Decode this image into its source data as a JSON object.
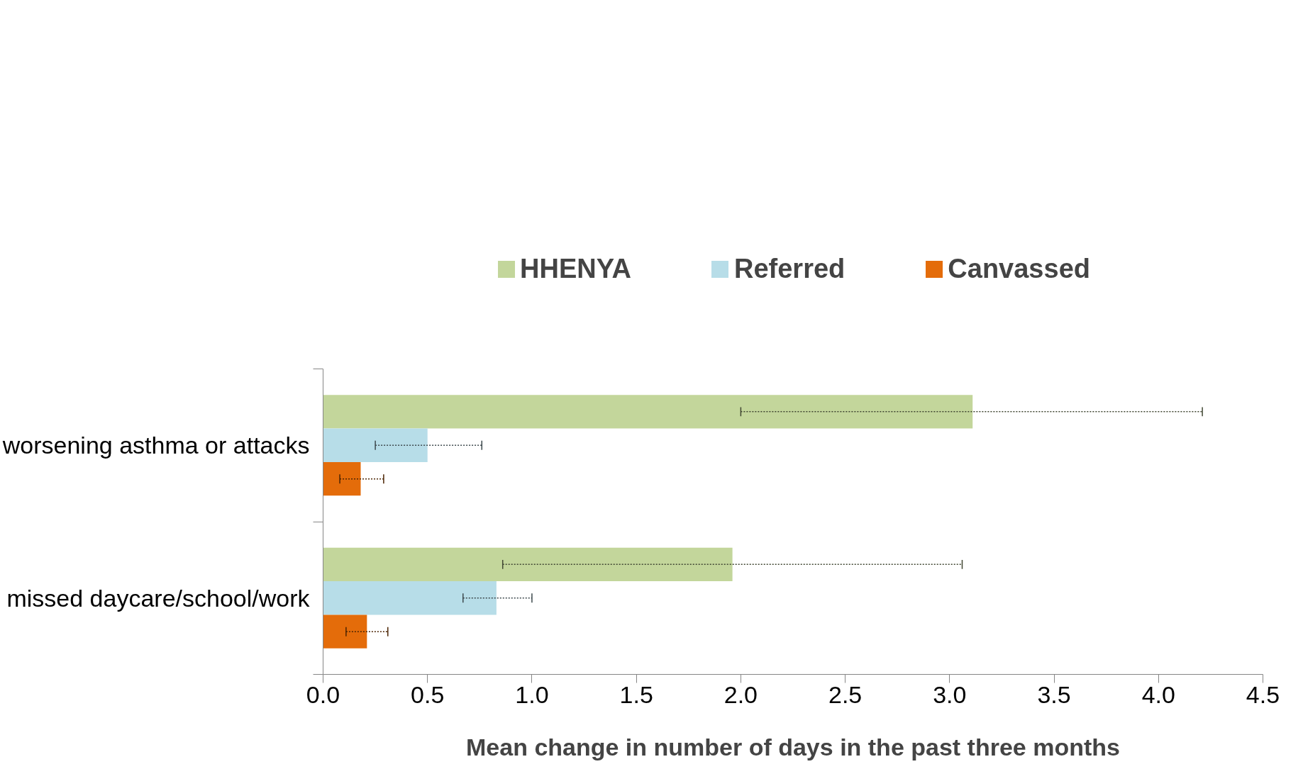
{
  "chart_data": {
    "type": "bar",
    "orientation": "horizontal",
    "categories": [
      "worsening asthma or attacks",
      "missed daycare/school/work"
    ],
    "series": [
      {
        "name": "HHENYA",
        "color": "#c3d69b",
        "values": [
          3.11,
          1.96
        ],
        "errors": [
          [
            2.0,
            4.21
          ],
          [
            0.86,
            3.06
          ]
        ]
      },
      {
        "name": "Referred",
        "color": "#b7dde8",
        "values": [
          0.5,
          0.83
        ],
        "errors": [
          [
            0.25,
            0.76
          ],
          [
            0.67,
            1.0
          ]
        ]
      },
      {
        "name": "Canvassed",
        "color": "#e46c0a",
        "values": [
          0.18,
          0.21
        ],
        "errors": [
          [
            0.08,
            0.29
          ],
          [
            0.11,
            0.31
          ]
        ]
      }
    ],
    "xlim": [
      0,
      4.5
    ],
    "xticks": [
      {
        "value": 0,
        "label": "0.0"
      },
      {
        "value": 0.5,
        "label": "0.5"
      },
      {
        "value": 1,
        "label": "1.0"
      },
      {
        "value": 1.5,
        "label": "1.5"
      },
      {
        "value": 2,
        "label": "2.0"
      },
      {
        "value": 2.5,
        "label": "2.5"
      },
      {
        "value": 3,
        "label": "3.0"
      },
      {
        "value": 3.5,
        "label": "3.5"
      },
      {
        "value": 4,
        "label": "4.0"
      },
      {
        "value": 4.5,
        "label": "4.5"
      }
    ],
    "xlabel": "Mean change in number of days in the past three months",
    "legend": "top",
    "grid": false
  }
}
